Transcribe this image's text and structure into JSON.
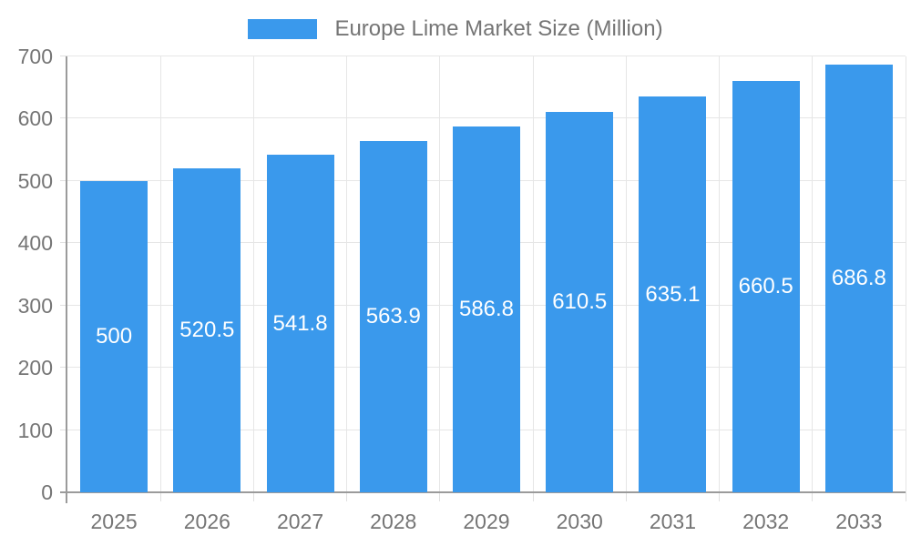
{
  "legend": {
    "label": "Europe Lime Market Size (Million)"
  },
  "chart_data": {
    "type": "bar",
    "title": "Europe Lime Market Size (Million)",
    "series_name": "Europe Lime Market Size (Million)",
    "categories": [
      "2025",
      "2026",
      "2027",
      "2028",
      "2029",
      "2030",
      "2031",
      "2032",
      "2033"
    ],
    "values": [
      500,
      520.5,
      541.8,
      563.9,
      586.8,
      610.5,
      635.1,
      660.5,
      686.8
    ],
    "value_labels": [
      "500",
      "520.5",
      "541.8",
      "563.9",
      "586.8",
      "610.5",
      "635.1",
      "660.5",
      "686.8"
    ],
    "xlabel": "",
    "ylabel": "",
    "ylim": [
      0,
      700
    ],
    "y_ticks": [
      0,
      100,
      200,
      300,
      400,
      500,
      600,
      700
    ],
    "grid": true,
    "legend_position": "top",
    "colors": {
      "bar": "#3A99EC",
      "tick_text": "#757575",
      "grid": "#E6E6E6",
      "axis": "#9B9B9B",
      "value_text": "#FFFFFF",
      "legend_text": "#757575"
    }
  }
}
